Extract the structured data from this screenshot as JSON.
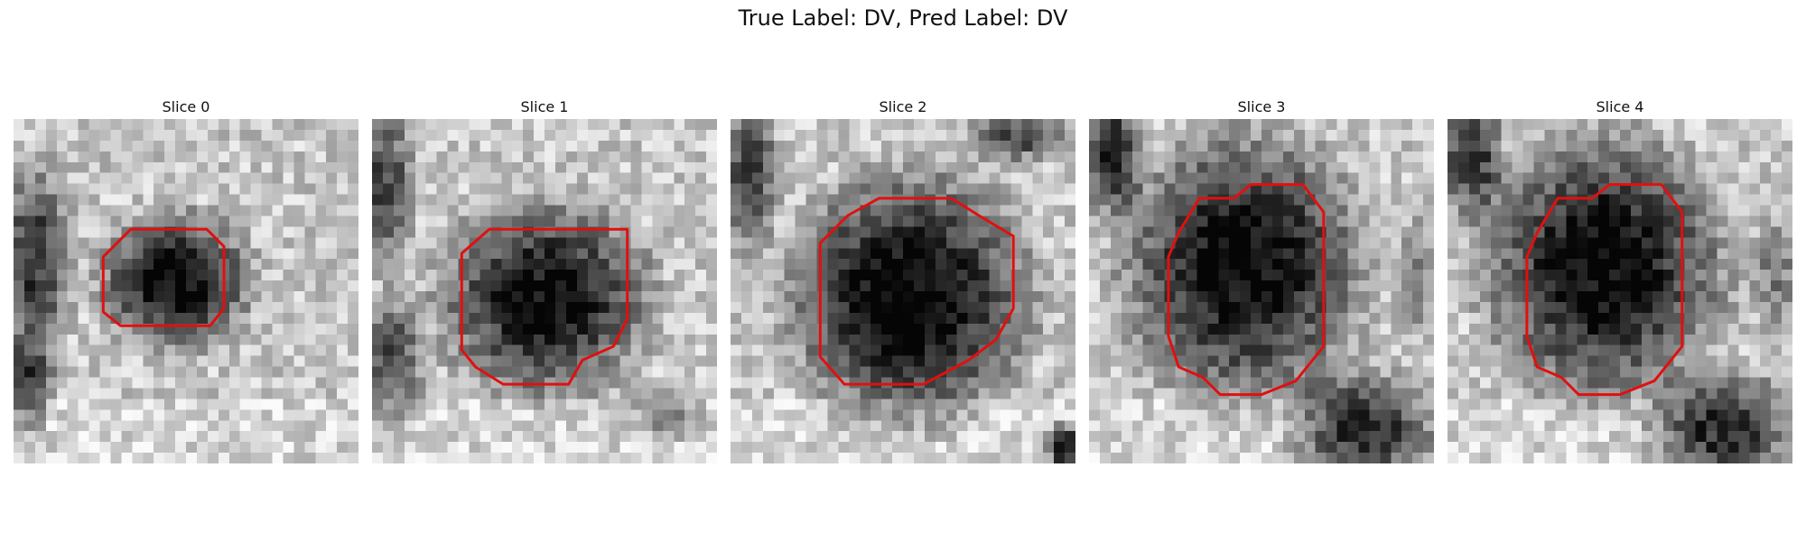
{
  "figure": {
    "title": "True Label: DV, Pred Label: DV",
    "outline_color": "#e01010"
  },
  "panels": [
    {
      "label": "Slice 0"
    },
    {
      "label": "Slice 1"
    },
    {
      "label": "Slice 2"
    },
    {
      "label": "Slice 3"
    },
    {
      "label": "Slice 4"
    }
  ]
}
